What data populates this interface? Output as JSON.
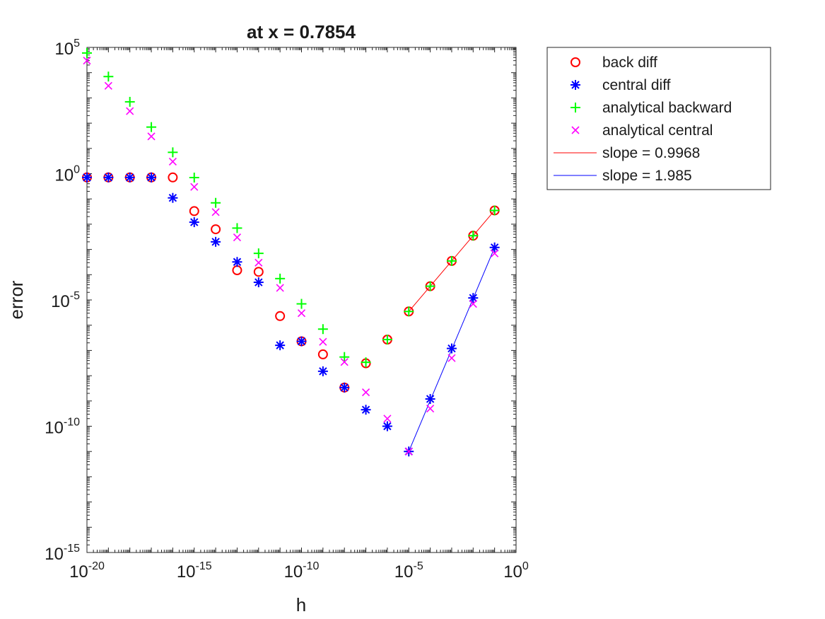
{
  "chart_data": {
    "type": "scatter",
    "title": "at x = 0.7854",
    "xlabel": "h",
    "ylabel": "error",
    "xscale": "log",
    "yscale": "log",
    "xlim": [
      1e-20,
      1
    ],
    "ylim": [
      1e-15,
      100000
    ],
    "xticks": [
      1e-20,
      1e-15,
      1e-10,
      1e-05,
      1
    ],
    "yticks": [
      1e-15,
      1e-10,
      1e-05,
      1,
      100000
    ],
    "xtick_labels": [
      {
        "base": "10",
        "exp": "-20"
      },
      {
        "base": "10",
        "exp": "-15"
      },
      {
        "base": "10",
        "exp": "-10"
      },
      {
        "base": "10",
        "exp": "-5"
      },
      {
        "base": "10",
        "exp": "0"
      }
    ],
    "ytick_labels": [
      {
        "base": "10",
        "exp": "-15"
      },
      {
        "base": "10",
        "exp": "-10"
      },
      {
        "base": "10",
        "exp": "-5"
      },
      {
        "base": "10",
        "exp": "0"
      },
      {
        "base": "10",
        "exp": "5"
      }
    ],
    "grid": false,
    "legend_position": "outside-right",
    "x": [
      1e-20,
      1e-19,
      1e-18,
      1e-17,
      1e-16,
      1e-15,
      1e-14,
      1e-13,
      1e-12,
      1e-11,
      1e-10,
      1e-09,
      1e-08,
      1e-07,
      1e-06,
      1e-05,
      0.0001,
      0.001,
      0.01,
      0.1
    ],
    "series": [
      {
        "name": "back diff",
        "marker": "circle",
        "color": "#ff0000",
        "values": [
          0.71,
          0.71,
          0.71,
          0.71,
          0.71,
          0.033,
          0.0063,
          0.00015,
          0.00013,
          2.3e-06,
          2.3e-07,
          7e-08,
          3.4e-09,
          3.1e-08,
          2.7e-07,
          3.5e-06,
          3.5e-05,
          0.00035,
          0.0035,
          0.035
        ]
      },
      {
        "name": "central diff",
        "marker": "asterisk",
        "color": "#0000ff",
        "values": [
          0.71,
          0.71,
          0.71,
          0.71,
          0.11,
          0.012,
          0.002,
          0.00032,
          5e-05,
          1.6e-07,
          2.3e-07,
          1.5e-08,
          3.4e-09,
          4.5e-10,
          1e-10,
          1e-11,
          1.2e-09,
          1.2e-07,
          1.2e-05,
          0.0012
        ]
      },
      {
        "name": "analytical backward",
        "marker": "plus",
        "color": "#00ff00",
        "values": [
          60000,
          7000,
          700,
          70,
          7,
          0.7,
          0.07,
          0.007,
          0.0007,
          7e-05,
          7e-06,
          7e-07,
          5.5e-08,
          3.4e-08,
          2.7e-07,
          3.5e-06,
          3.5e-05,
          0.00035,
          0.0035,
          0.035
        ]
      },
      {
        "name": "analytical central",
        "marker": "cross",
        "color": "#ff00ff",
        "values": [
          30000,
          3000,
          300,
          30,
          3,
          0.3,
          0.03,
          0.003,
          0.0003,
          3e-05,
          3e-06,
          2.2e-07,
          3.5e-08,
          2.2e-09,
          2e-10,
          1e-11,
          5e-10,
          5e-08,
          7e-06,
          0.0007
        ]
      }
    ],
    "fit_lines": [
      {
        "name": "slope = 0.9968",
        "color": "#ff0000",
        "x": [
          1e-05,
          0.1
        ],
        "y": [
          3.5e-06,
          0.035
        ]
      },
      {
        "name": "slope = 1.985",
        "color": "#0000ff",
        "x": [
          1e-05,
          0.1
        ],
        "y": [
          1e-11,
          0.0012
        ]
      }
    ]
  }
}
